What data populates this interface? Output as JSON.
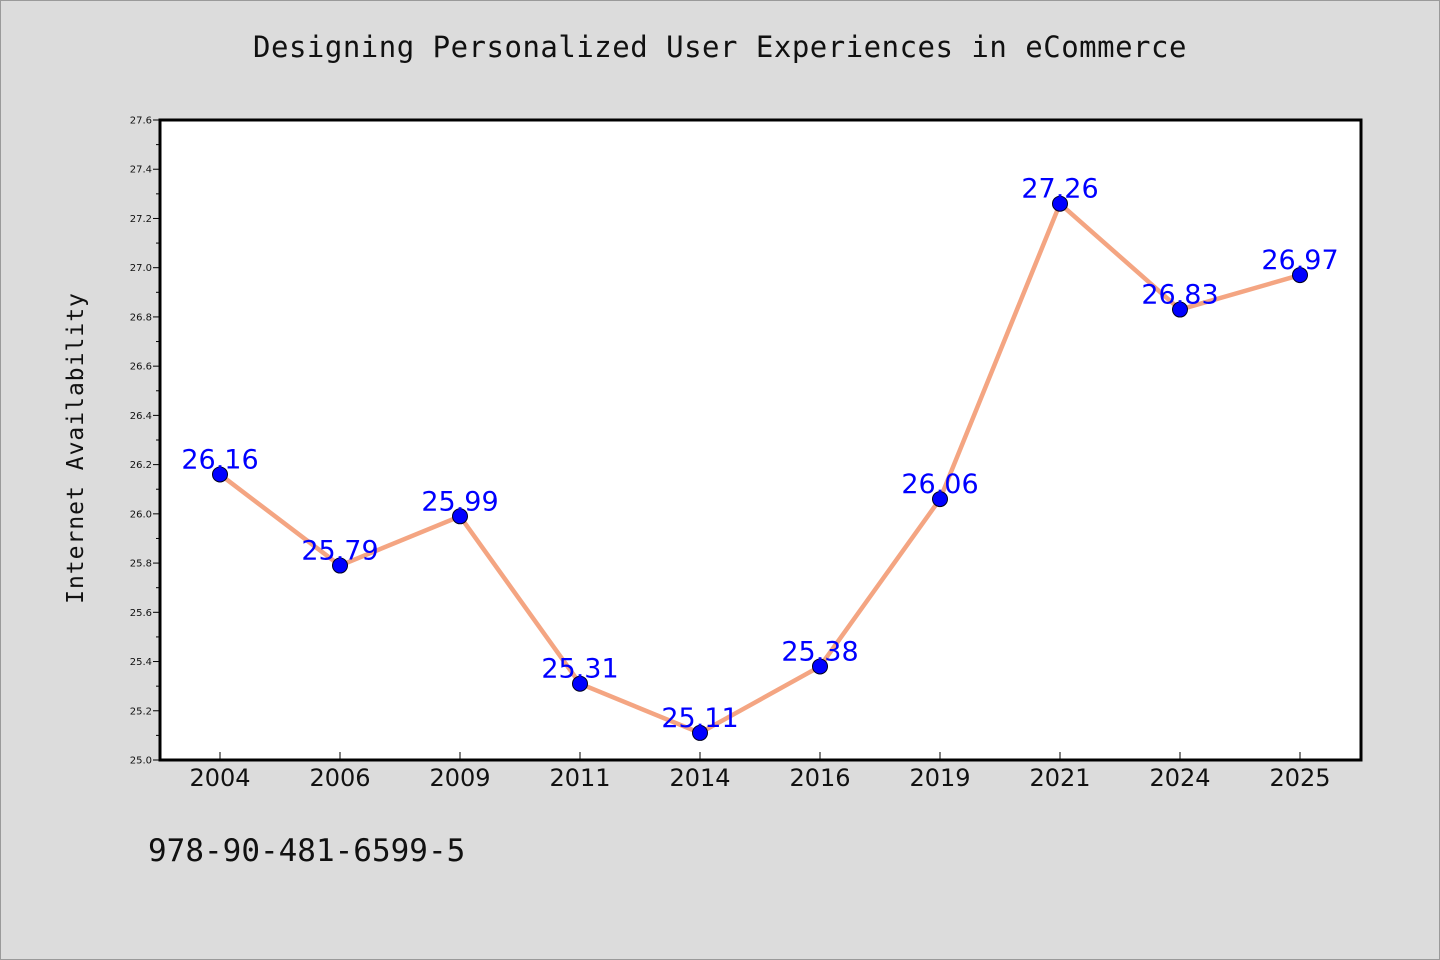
{
  "chart_data": {
    "type": "line",
    "title": "Designing Personalized User Experiences in eCommerce",
    "xlabel": "",
    "ylabel": "Internet Availability",
    "categories": [
      "2004",
      "2006",
      "2009",
      "2011",
      "2014",
      "2016",
      "2019",
      "2021",
      "2024",
      "2025"
    ],
    "series": [
      {
        "values": [
          26.16,
          25.79,
          25.99,
          25.31,
          25.11,
          25.38,
          26.06,
          27.26,
          26.83,
          26.97
        ],
        "line_color": "#f4a582",
        "marker_color": "#0000ff",
        "label_color": "#0000ff"
      }
    ],
    "data_labels": [
      "26.16",
      "25.79",
      "25.99",
      "25.31",
      "25.11",
      "25.38",
      "26.06",
      "27.26",
      "26.83",
      "26.97"
    ],
    "ylim": [
      25.0,
      27.6
    ],
    "yticks": [
      "25.0",
      "25.2",
      "25.4",
      "25.6",
      "25.8",
      "26.0",
      "26.2",
      "26.4",
      "26.6",
      "26.8",
      "27.0",
      "27.2",
      "27.4",
      "27.6"
    ],
    "grid": false,
    "legend": "none"
  },
  "footer": {
    "code": "978-90-481-6599-5"
  },
  "colors": {
    "background": "#dcdcdc",
    "plot_background": "#ffffff",
    "line": "#f4a582",
    "marker": "#0000ff",
    "data_label": "#0000ff"
  }
}
